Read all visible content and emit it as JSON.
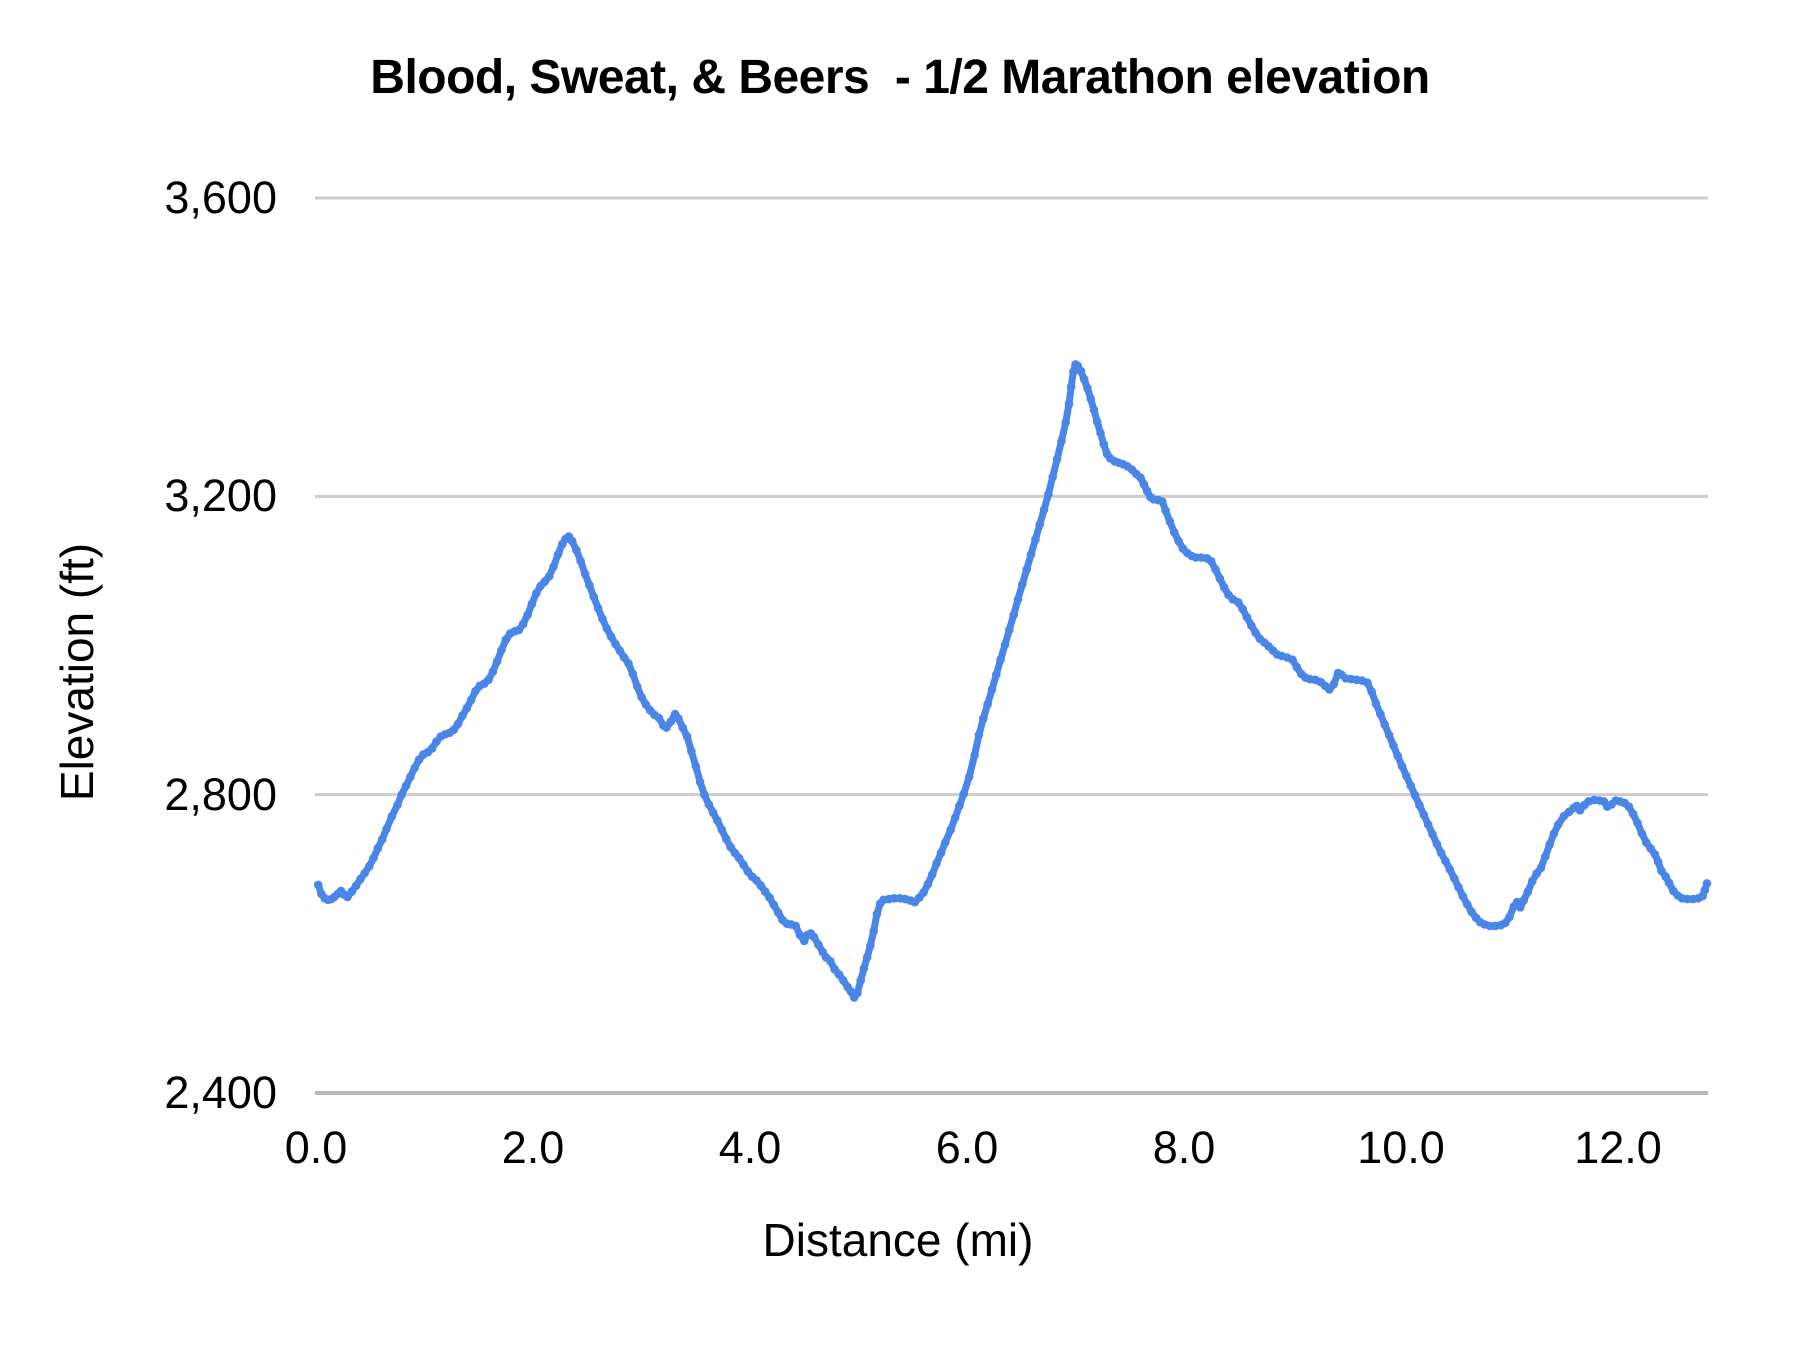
{
  "chart": {
    "title": "Blood, Sweat, & Beers  - 1/2 Marathon elevation",
    "x_axis": {
      "title": "Distance (mi)",
      "tick_labels": [
        "0.0",
        "2.0",
        "4.0",
        "6.0",
        "8.0",
        "10.0",
        "12.0"
      ],
      "tick_values": [
        0,
        2,
        4,
        6,
        8,
        10,
        12
      ]
    },
    "y_axis": {
      "title": "Elevation (ft)",
      "tick_labels": [
        "2,400",
        "2,800",
        "3,200",
        "3,600"
      ],
      "tick_values": [
        2400,
        2800,
        3200,
        3600
      ]
    },
    "colors": {
      "line": "#4a86e8",
      "gridline": "#cccccc",
      "baseline": "#b7b7b7",
      "text": "#000000",
      "background": "#ffffff"
    }
  },
  "chart_data": {
    "type": "line",
    "title": "Blood, Sweat, & Beers  - 1/2 Marathon elevation",
    "xlabel": "Distance (mi)",
    "ylabel": "Elevation (ft)",
    "xlim": [
      0,
      12.82
    ],
    "ylim": [
      2400,
      3600
    ],
    "grid": true,
    "legend": "none",
    "series_name": "Elevation",
    "x": [
      0.02,
      0.05,
      0.08,
      0.11,
      0.14,
      0.17,
      0.2,
      0.23,
      0.26,
      0.29,
      0.33,
      0.37,
      0.41,
      0.45,
      0.49,
      0.53,
      0.57,
      0.61,
      0.65,
      0.7,
      0.75,
      0.79,
      0.83,
      0.87,
      0.91,
      0.95,
      0.99,
      1.03,
      1.07,
      1.11,
      1.15,
      1.19,
      1.23,
      1.27,
      1.31,
      1.35,
      1.39,
      1.43,
      1.47,
      1.51,
      1.55,
      1.59,
      1.63,
      1.67,
      1.71,
      1.75,
      1.79,
      1.83,
      1.87,
      1.91,
      1.95,
      1.99,
      2.03,
      2.07,
      2.11,
      2.15,
      2.19,
      2.23,
      2.27,
      2.3,
      2.33,
      2.36,
      2.4,
      2.44,
      2.48,
      2.52,
      2.56,
      2.6,
      2.64,
      2.68,
      2.72,
      2.76,
      2.8,
      2.84,
      2.88,
      2.92,
      2.96,
      3.0,
      3.04,
      3.08,
      3.12,
      3.16,
      3.2,
      3.23,
      3.27,
      3.31,
      3.34,
      3.38,
      3.42,
      3.46,
      3.5,
      3.54,
      3.58,
      3.62,
      3.66,
      3.7,
      3.74,
      3.78,
      3.82,
      3.86,
      3.9,
      3.94,
      3.98,
      4.02,
      4.06,
      4.1,
      4.14,
      4.18,
      4.22,
      4.26,
      4.3,
      4.34,
      4.38,
      4.42,
      4.46,
      4.5,
      4.53,
      4.56,
      4.59,
      4.63,
      4.67,
      4.7,
      4.74,
      4.78,
      4.82,
      4.86,
      4.9,
      4.93,
      4.96,
      4.99,
      5.02,
      5.05,
      5.08,
      5.11,
      5.14,
      5.17,
      5.2,
      5.23,
      5.28,
      5.33,
      5.38,
      5.43,
      5.48,
      5.52,
      5.56,
      5.6,
      5.64,
      5.68,
      5.72,
      5.76,
      5.8,
      5.85,
      5.89,
      5.93,
      5.97,
      6.02,
      6.07,
      6.11,
      6.15,
      6.19,
      6.23,
      6.27,
      6.31,
      6.35,
      6.39,
      6.43,
      6.47,
      6.51,
      6.55,
      6.59,
      6.63,
      6.67,
      6.71,
      6.75,
      6.79,
      6.83,
      6.87,
      6.91,
      6.94,
      6.96,
      6.98,
      7.0,
      7.02,
      7.05,
      7.08,
      7.11,
      7.14,
      7.17,
      7.2,
      7.23,
      7.26,
      7.29,
      7.32,
      7.36,
      7.4,
      7.44,
      7.48,
      7.52,
      7.56,
      7.6,
      7.63,
      7.66,
      7.69,
      7.72,
      7.76,
      7.8,
      7.83,
      7.87,
      7.91,
      7.95,
      7.99,
      8.03,
      8.07,
      8.11,
      8.16,
      8.21,
      8.25,
      8.29,
      8.33,
      8.37,
      8.41,
      8.45,
      8.5,
      8.54,
      8.58,
      8.62,
      8.66,
      8.7,
      8.74,
      8.78,
      8.82,
      8.86,
      8.9,
      8.95,
      9.0,
      9.04,
      9.08,
      9.12,
      9.16,
      9.21,
      9.26,
      9.3,
      9.34,
      9.38,
      9.42,
      9.45,
      9.49,
      9.54,
      9.59,
      9.64,
      9.69,
      9.73,
      9.77,
      9.81,
      9.85,
      9.89,
      9.93,
      9.97,
      10.01,
      10.05,
      10.09,
      10.13,
      10.17,
      10.21,
      10.25,
      10.29,
      10.33,
      10.37,
      10.41,
      10.45,
      10.49,
      10.53,
      10.57,
      10.61,
      10.65,
      10.69,
      10.73,
      10.77,
      10.82,
      10.87,
      10.92,
      10.96,
      11.0,
      11.04,
      11.07,
      11.1,
      11.13,
      11.17,
      11.21,
      11.25,
      11.29,
      11.33,
      11.37,
      11.41,
      11.45,
      11.5,
      11.55,
      11.59,
      11.62,
      11.65,
      11.69,
      11.73,
      11.78,
      11.83,
      11.87,
      11.9,
      11.94,
      11.98,
      12.02,
      12.06,
      12.1,
      12.14,
      12.18,
      12.22,
      12.26,
      12.3,
      12.34,
      12.37,
      12.4,
      12.44,
      12.47,
      12.51,
      12.55,
      12.59,
      12.64,
      12.69,
      12.74,
      12.78,
      12.8,
      12.82
    ],
    "y": [
      2679,
      2667,
      2661,
      2659,
      2660,
      2663,
      2667,
      2671,
      2666,
      2663,
      2670,
      2678,
      2687,
      2695,
      2704,
      2715,
      2728,
      2740,
      2754,
      2771,
      2786,
      2800,
      2812,
      2824,
      2836,
      2847,
      2854,
      2857,
      2862,
      2871,
      2878,
      2881,
      2883,
      2887,
      2895,
      2906,
      2916,
      2927,
      2939,
      2946,
      2949,
      2954,
      2965,
      2979,
      2994,
      3008,
      3016,
      3019,
      3021,
      3029,
      3041,
      3056,
      3070,
      3080,
      3086,
      3093,
      3106,
      3122,
      3136,
      3143,
      3146,
      3140,
      3128,
      3113,
      3096,
      3081,
      3065,
      3050,
      3036,
      3023,
      3012,
      3002,
      2993,
      2984,
      2976,
      2962,
      2945,
      2931,
      2921,
      2913,
      2907,
      2903,
      2893,
      2890,
      2898,
      2908,
      2902,
      2890,
      2878,
      2858,
      2838,
      2817,
      2800,
      2787,
      2776,
      2765,
      2753,
      2741,
      2730,
      2722,
      2715,
      2706,
      2697,
      2690,
      2685,
      2678,
      2670,
      2662,
      2652,
      2642,
      2632,
      2627,
      2626,
      2624,
      2612,
      2604,
      2612,
      2614,
      2609,
      2599,
      2589,
      2582,
      2577,
      2566,
      2559,
      2551,
      2542,
      2536,
      2528,
      2534,
      2551,
      2567,
      2582,
      2598,
      2617,
      2640,
      2654,
      2659,
      2660,
      2661,
      2661,
      2660,
      2658,
      2656,
      2662,
      2669,
      2680,
      2693,
      2708,
      2722,
      2736,
      2753,
      2769,
      2785,
      2801,
      2824,
      2853,
      2880,
      2902,
      2921,
      2941,
      2961,
      2981,
      3001,
      3021,
      3041,
      3062,
      3082,
      3102,
      3122,
      3142,
      3162,
      3182,
      3203,
      3226,
      3250,
      3274,
      3299,
      3324,
      3347,
      3367,
      3377,
      3375,
      3368,
      3357,
      3345,
      3331,
      3316,
      3300,
      3285,
      3270,
      3257,
      3251,
      3247,
      3245,
      3243,
      3240,
      3236,
      3230,
      3225,
      3216,
      3207,
      3199,
      3196,
      3195,
      3193,
      3181,
      3166,
      3152,
      3140,
      3130,
      3124,
      3120,
      3118,
      3118,
      3117,
      3113,
      3102,
      3090,
      3078,
      3068,
      3062,
      3058,
      3049,
      3038,
      3027,
      3017,
      3009,
      3004,
      2999,
      2993,
      2988,
      2986,
      2984,
      2981,
      2971,
      2962,
      2957,
      2955,
      2954,
      2951,
      2946,
      2941,
      2948,
      2963,
      2961,
      2956,
      2955,
      2954,
      2953,
      2950,
      2938,
      2922,
      2908,
      2894,
      2880,
      2866,
      2852,
      2838,
      2825,
      2812,
      2799,
      2786,
      2773,
      2760,
      2747,
      2734,
      2722,
      2711,
      2700,
      2688,
      2676,
      2664,
      2653,
      2643,
      2635,
      2629,
      2626,
      2624,
      2624,
      2625,
      2628,
      2636,
      2650,
      2656,
      2649,
      2658,
      2670,
      2684,
      2694,
      2702,
      2717,
      2733,
      2748,
      2760,
      2771,
      2777,
      2782,
      2785,
      2779,
      2786,
      2791,
      2793,
      2792,
      2791,
      2784,
      2787,
      2792,
      2791,
      2789,
      2784,
      2774,
      2762,
      2748,
      2736,
      2728,
      2720,
      2710,
      2698,
      2690,
      2682,
      2671,
      2665,
      2661,
      2660,
      2660,
      2661,
      2664,
      2672,
      2681
    ]
  }
}
